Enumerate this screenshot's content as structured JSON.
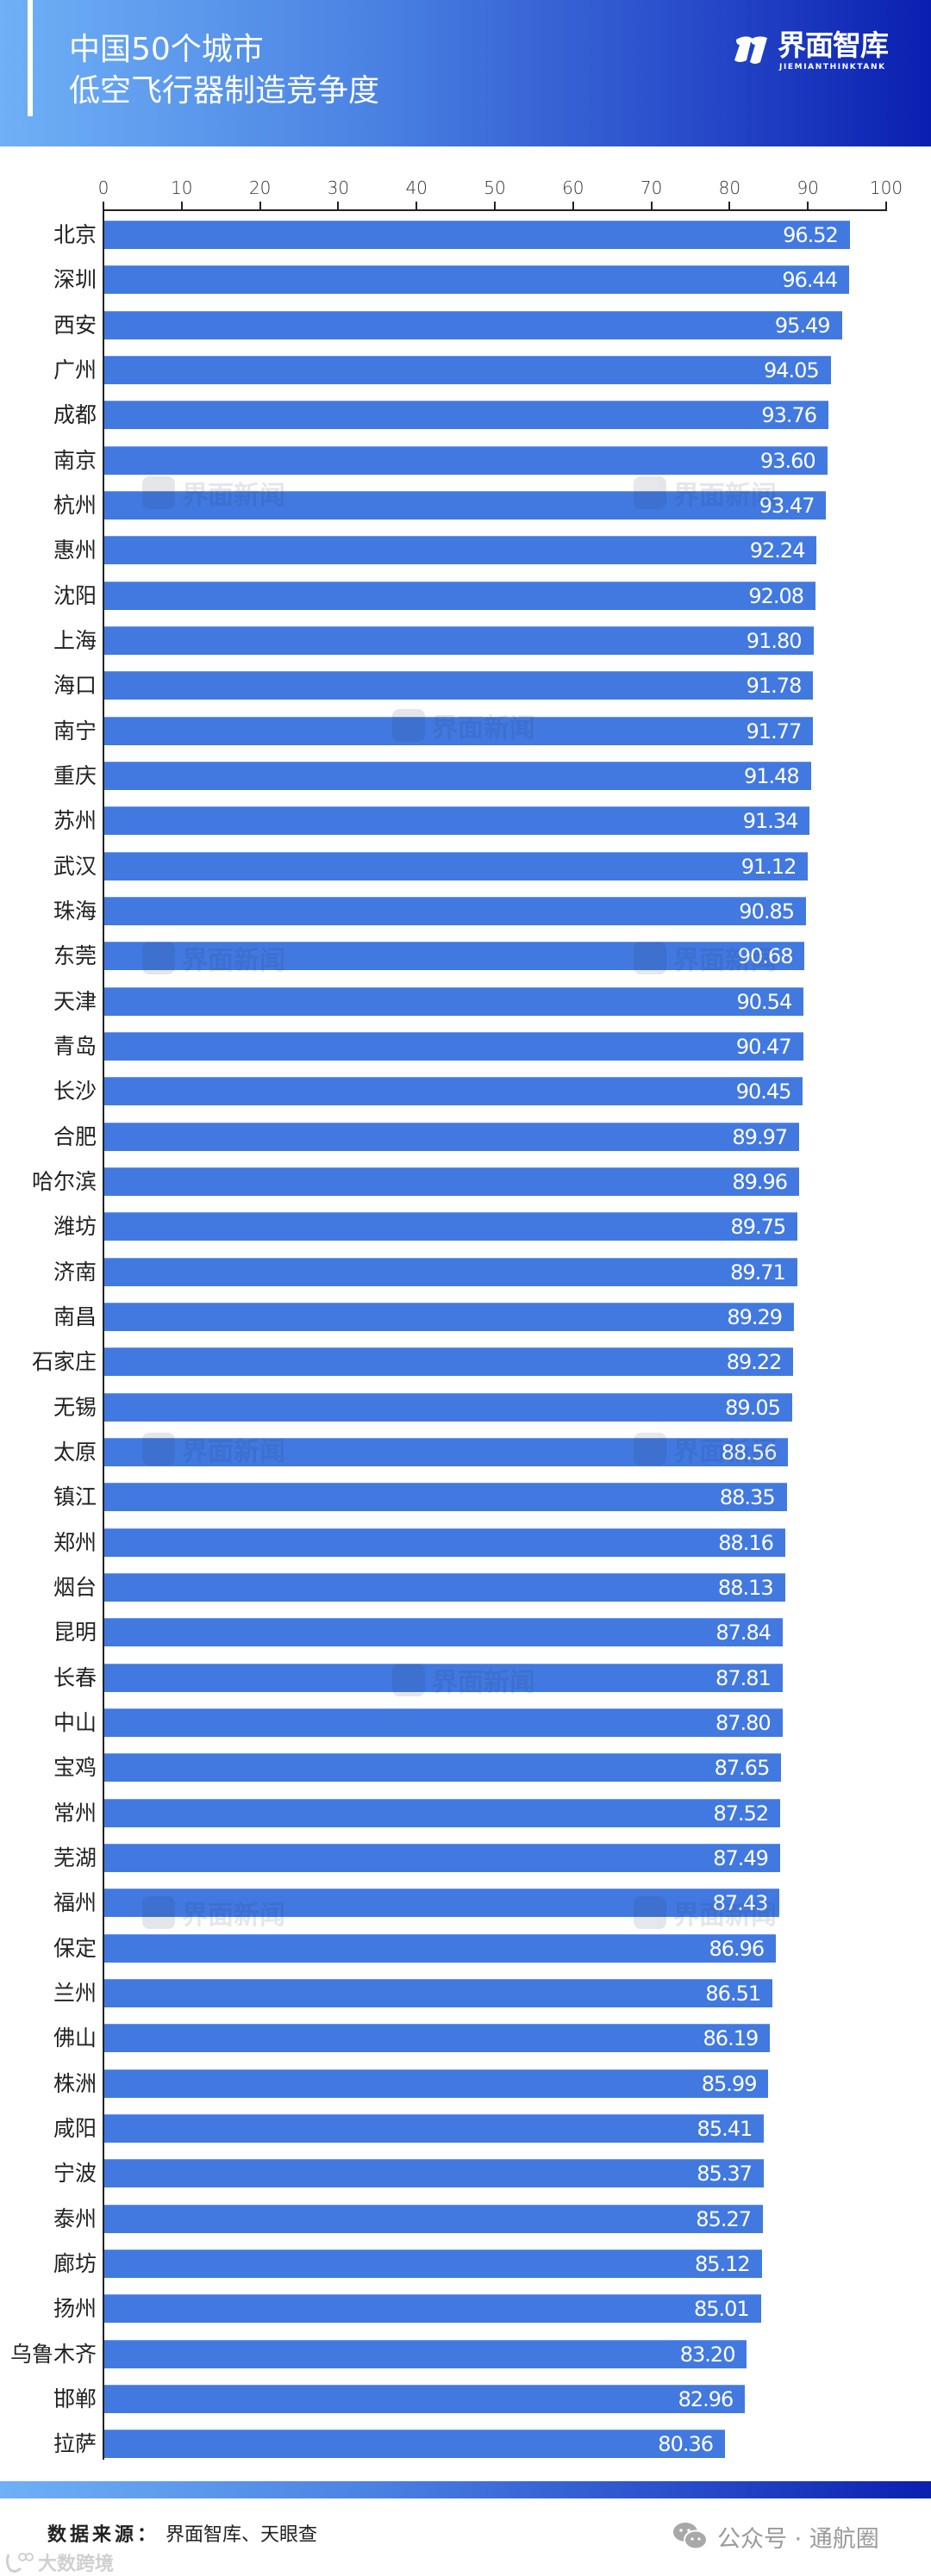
{
  "header": {
    "title_line1": "中国50个城市",
    "title_line2": "低空飞行器制造竞争度",
    "logo_cn": "界面智库",
    "logo_en": "JIEMIANTHINKTANK",
    "gradient_start": "#6fb0f6",
    "gradient_end": "#0a1fb0"
  },
  "watermark_text": "界面新闻",
  "footer": {
    "source_label": "数据来源：",
    "source_value": "界面智库、天眼查",
    "wechat_watermark": "公众号 · 通航圈",
    "corner_watermark": "大数跨境"
  },
  "colors": {
    "bar": "#4279e0",
    "axis": "#222222"
  },
  "chart_data": {
    "type": "bar",
    "orientation": "horizontal",
    "title": "中国50个城市低空飞行器制造竞争度",
    "xlabel": "",
    "ylabel": "",
    "xlim": [
      0,
      100
    ],
    "x_ticks": [
      0,
      10,
      20,
      30,
      40,
      50,
      60,
      70,
      80,
      90,
      100
    ],
    "x_axis_position": "top",
    "grid": false,
    "legend": null,
    "data_labels": true,
    "categories": [
      "北京",
      "深圳",
      "西安",
      "广州",
      "成都",
      "南京",
      "杭州",
      "惠州",
      "沈阳",
      "上海",
      "海口",
      "南宁",
      "重庆",
      "苏州",
      "武汉",
      "珠海",
      "东莞",
      "天津",
      "青岛",
      "长沙",
      "合肥",
      "哈尔滨",
      "潍坊",
      "济南",
      "南昌",
      "石家庄",
      "无锡",
      "太原",
      "镇江",
      "郑州",
      "烟台",
      "昆明",
      "长春",
      "中山",
      "宝鸡",
      "常州",
      "芜湖",
      "福州",
      "保定",
      "兰州",
      "佛山",
      "株洲",
      "咸阳",
      "宁波",
      "泰州",
      "廊坊",
      "扬州",
      "乌鲁木齐",
      "邯郸",
      "拉萨"
    ],
    "values": [
      96.52,
      96.44,
      95.49,
      94.05,
      93.76,
      93.6,
      93.47,
      92.24,
      92.08,
      91.8,
      91.78,
      91.77,
      91.48,
      91.34,
      91.12,
      90.85,
      90.68,
      90.54,
      90.47,
      90.45,
      89.97,
      89.96,
      89.75,
      89.71,
      89.29,
      89.22,
      89.05,
      88.56,
      88.35,
      88.16,
      88.13,
      87.84,
      87.81,
      87.8,
      87.65,
      87.52,
      87.49,
      87.43,
      86.96,
      86.51,
      86.19,
      85.99,
      85.41,
      85.37,
      85.27,
      85.12,
      85.01,
      83.2,
      82.96,
      80.36
    ],
    "value_labels": [
      "96.52",
      "96.44",
      "95.49",
      "94.05",
      "93.76",
      "93.60",
      "93.47",
      "92.24",
      "92.08",
      "91.80",
      "91.78",
      "91.77",
      "91.48",
      "91.34",
      "91.12",
      "90.85",
      "90.68",
      "90.54",
      "90.47",
      "90.45",
      "89.97",
      "89.96",
      "89.75",
      "89.71",
      "89.29",
      "89.22",
      "89.05",
      "88.56",
      "88.35",
      "88.16",
      "88.13",
      "87.84",
      "87.81",
      "87.80",
      "87.65",
      "87.52",
      "87.49",
      "87.43",
      "86.96",
      "86.51",
      "86.19",
      "85.99",
      "85.41",
      "85.37",
      "85.27",
      "85.12",
      "85.01",
      "83.20",
      "82.96",
      "80.36"
    ],
    "source": "界面智库、天眼查"
  }
}
